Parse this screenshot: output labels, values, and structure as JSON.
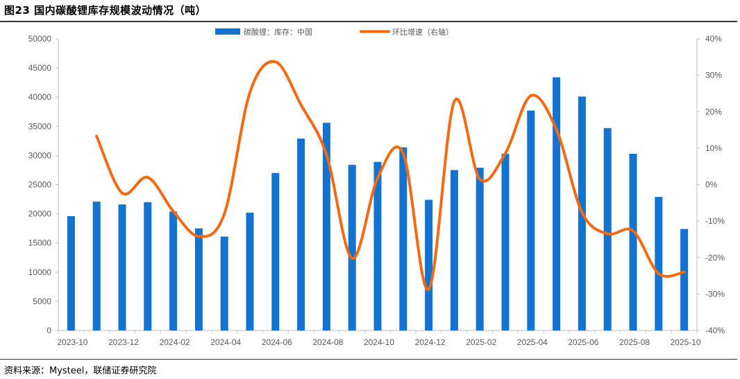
{
  "title": "图23 国内碳酸锂库存规模波动情况（吨）",
  "source": "资料来源：Mysteel，联储证券研究院",
  "colors": {
    "bar": "#1273D0",
    "line": "#F56A10",
    "axis": "#BFBFBF",
    "text": "#595959"
  },
  "chart_data": {
    "type": "bar",
    "categories": [
      "2023-10",
      "2023-11",
      "2023-12",
      "2024-01",
      "2024-02",
      "2024-03",
      "2024-04",
      "2024-05",
      "2024-06",
      "2024-07",
      "2024-08",
      "2024-09",
      "2024-10",
      "2024-11",
      "2024-12",
      "2025-01",
      "2025-02",
      "2025-03",
      "2025-04",
      "2025-05",
      "2025-06",
      "2025-07",
      "2025-08",
      "2025-09",
      "2025-10"
    ],
    "x_tick_labels": [
      "2023-10",
      "2023-12",
      "2024-02",
      "2024-04",
      "2024-06",
      "2024-08",
      "2024-10",
      "2024-12",
      "2025-02",
      "2025-04",
      "2025-06",
      "2025-08",
      "2025-10"
    ],
    "series": [
      {
        "name": "碳酸锂：库存：中国",
        "type": "bar",
        "axis": "left",
        "values": [
          19600,
          22100,
          21600,
          22000,
          20400,
          17500,
          16100,
          20200,
          27000,
          32900,
          35600,
          28400,
          28900,
          31400,
          22400,
          27500,
          27900,
          30300,
          37700,
          43400,
          40100,
          34700,
          30300,
          22900,
          17400
        ]
      },
      {
        "name": "环比增速（右轴）",
        "type": "line",
        "axis": "right",
        "values": [
          null,
          13.3,
          -2.3,
          2.0,
          -7.3,
          -14.2,
          -8.0,
          25.3,
          33.7,
          21.9,
          8.2,
          -20.2,
          1.8,
          8.6,
          -28.7,
          22.8,
          1.5,
          8.6,
          24.4,
          15.1,
          -7.6,
          -13.5,
          -12.7,
          -24.4,
          -24.0
        ]
      }
    ],
    "y_left": {
      "min": 0,
      "max": 50000,
      "ticks": [
        "0",
        "5000",
        "10000",
        "15000",
        "20000",
        "25000",
        "30000",
        "35000",
        "40000",
        "45000",
        "50000"
      ]
    },
    "y_right": {
      "min": -40,
      "max": 40,
      "ticks": [
        "-40%",
        "-30%",
        "-20%",
        "-10%",
        "0%",
        "10%",
        "20%",
        "30%",
        "40%"
      ]
    },
    "legend_position": "top-center",
    "grid": false
  }
}
